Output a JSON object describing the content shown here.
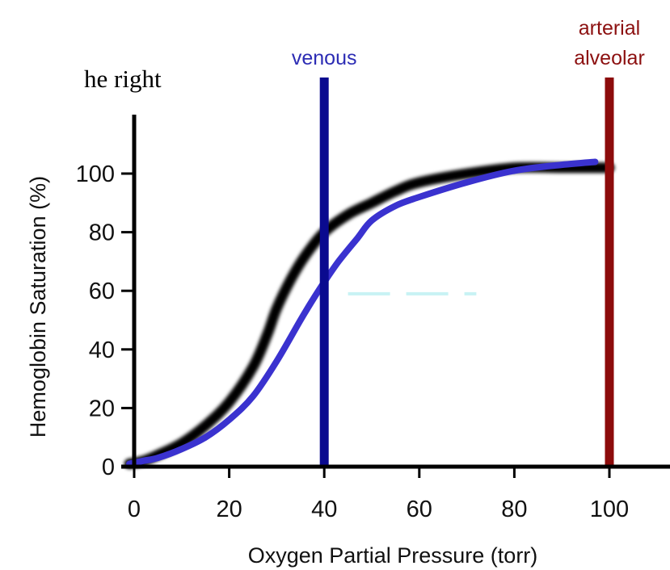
{
  "page": {
    "cropped_text_fragment": "he right"
  },
  "chart_data": {
    "type": "line",
    "xlabel": "Oxygen Partial Pressure (torr)",
    "ylabel": "Hemoglobin Saturation (%)",
    "xlim": [
      0,
      100
    ],
    "ylim": [
      0,
      100
    ],
    "x_ticks": [
      0,
      20,
      40,
      60,
      80,
      100
    ],
    "y_ticks": [
      0,
      20,
      40,
      60,
      80,
      100
    ],
    "grid": false,
    "series": [
      {
        "color": "#000000",
        "style": "thick black, blurred",
        "points": [
          [
            -1,
            1
          ],
          [
            2,
            2
          ],
          [
            5,
            4
          ],
          [
            10,
            8
          ],
          [
            15,
            14
          ],
          [
            20,
            22
          ],
          [
            25,
            34
          ],
          [
            28,
            45
          ],
          [
            30,
            54
          ],
          [
            33,
            64
          ],
          [
            36,
            72
          ],
          [
            40,
            80
          ],
          [
            45,
            86
          ],
          [
            50,
            90
          ],
          [
            55,
            94
          ],
          [
            60,
            97
          ],
          [
            70,
            100
          ],
          [
            80,
            102
          ],
          [
            90,
            102
          ],
          [
            97,
            102
          ],
          [
            100,
            102
          ]
        ]
      },
      {
        "color": "#3a32cf",
        "style": "solid blue",
        "points": [
          [
            -1,
            1
          ],
          [
            2,
            2
          ],
          [
            5,
            3
          ],
          [
            10,
            6
          ],
          [
            15,
            10
          ],
          [
            20,
            16
          ],
          [
            25,
            24
          ],
          [
            30,
            36
          ],
          [
            35,
            50
          ],
          [
            38,
            58
          ],
          [
            40,
            63
          ],
          [
            43,
            70
          ],
          [
            47,
            78
          ],
          [
            50,
            84
          ],
          [
            55,
            89
          ],
          [
            60,
            92
          ],
          [
            70,
            97
          ],
          [
            80,
            101
          ],
          [
            90,
            103
          ],
          [
            97,
            104
          ]
        ]
      },
      {
        "color": "#c8f2f4",
        "style": "light cyan dashed",
        "points": [
          [
            45,
            59
          ],
          [
            72,
            59
          ]
        ]
      }
    ],
    "reference_lines": [
      {
        "x": 40,
        "label": "venous",
        "color": "#0a0a8f",
        "label_color": "#2c2cb4"
      },
      {
        "x": 100,
        "labels": [
          "arterial",
          "alveolar"
        ],
        "color": "#8c0b0b",
        "label_color": "#8c1010"
      }
    ]
  }
}
